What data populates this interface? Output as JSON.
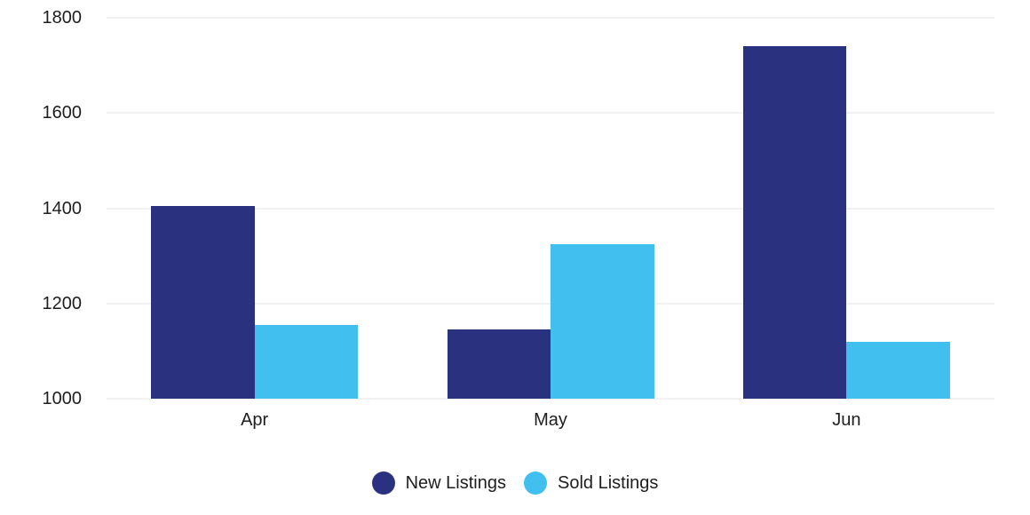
{
  "chart_data": {
    "type": "bar",
    "title": "",
    "xlabel": "",
    "ylabel": "",
    "categories": [
      "Apr",
      "May",
      "Jun"
    ],
    "series": [
      {
        "name": "New Listings",
        "color": "#2A317E",
        "values": [
          1405,
          1145,
          1740
        ]
      },
      {
        "name": "Sold Listings",
        "color": "#41C0F0",
        "values": [
          1155,
          1325,
          1120
        ]
      }
    ],
    "ylim": [
      1000,
      1800
    ],
    "yticks": [
      1000,
      1200,
      1400,
      1600,
      1800
    ],
    "grid": true,
    "gridline_color": "#f2f2f2",
    "text_color": "#1e1e1e",
    "background_color": "#ffffff",
    "legend_position": "bottom",
    "legend_marker": "circle"
  }
}
